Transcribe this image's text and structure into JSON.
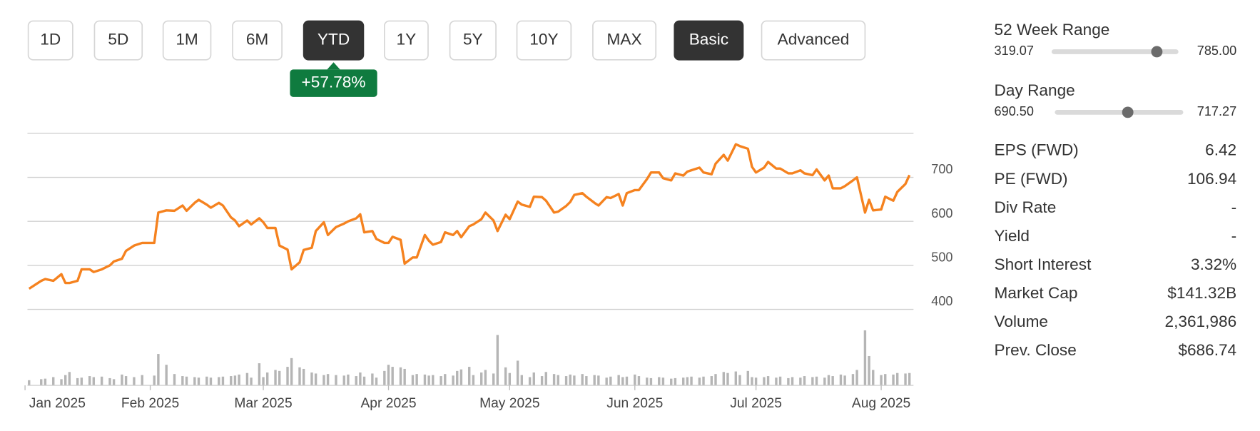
{
  "controls": {
    "buttons": [
      {
        "label": "1D",
        "active": false
      },
      {
        "label": "5D",
        "active": false
      },
      {
        "label": "1M",
        "active": false
      },
      {
        "label": "6M",
        "active": false
      },
      {
        "label": "YTD",
        "active": true
      },
      {
        "label": "1Y",
        "active": false
      },
      {
        "label": "5Y",
        "active": false
      },
      {
        "label": "10Y",
        "active": false
      },
      {
        "label": "MAX",
        "active": false
      },
      {
        "label": "Basic",
        "active": true
      },
      {
        "label": "Advanced",
        "active": false
      }
    ]
  },
  "change_badge": "+57.78%",
  "chart_data": {
    "type": "line",
    "color": "#f5821f",
    "volume_color": "#b5b5b5",
    "x": [
      2,
      5,
      6,
      8,
      10,
      11,
      12,
      14,
      15,
      17,
      18,
      20,
      22,
      23,
      25,
      26,
      28,
      30,
      33,
      34,
      36,
      38,
      40,
      41,
      43,
      44,
      46,
      47,
      49,
      50,
      52,
      53,
      54,
      56,
      57,
      59,
      60,
      61,
      63,
      64,
      66,
      67,
      69,
      70,
      72,
      73,
      75,
      76,
      78,
      80,
      81,
      83,
      84,
      85,
      87,
      88,
      90,
      91,
      92,
      94,
      95,
      97,
      98,
      100,
      101,
      102,
      104,
      105,
      107,
      108,
      109,
      111,
      112,
      114,
      115,
      117,
      118,
      120,
      121,
      123,
      124,
      126,
      127,
      129,
      130,
      132,
      133,
      135,
      136,
      137,
      139,
      140,
      142,
      143,
      145,
      146,
      148,
      149,
      150,
      152,
      153,
      155,
      156,
      158,
      159,
      161,
      162,
      164,
      165,
      166,
      168,
      169,
      171,
      172,
      174,
      175,
      177,
      178,
      180,
      181,
      182,
      184,
      185,
      187,
      188,
      190,
      191,
      193,
      194,
      196,
      197,
      199,
      200,
      201,
      203,
      204,
      206,
      207,
      209,
      210,
      211,
      213,
      214,
      216,
      217,
      219,
      220
    ],
    "values": [
      447,
      465,
      469,
      465,
      480,
      460,
      460,
      465,
      491,
      491,
      485,
      491,
      500,
      509,
      515,
      533,
      545,
      551,
      551,
      620,
      625,
      624,
      636,
      624,
      642,
      649,
      638,
      631,
      642,
      636,
      609,
      602,
      589,
      602,
      593,
      607,
      598,
      585,
      585,
      545,
      536,
      491,
      507,
      535,
      540,
      578,
      598,
      569,
      587,
      595,
      600,
      607,
      616,
      575,
      578,
      560,
      551,
      551,
      565,
      558,
      504,
      518,
      518,
      569,
      556,
      547,
      553,
      575,
      569,
      578,
      564,
      589,
      593,
      605,
      620,
      602,
      578,
      615,
      605,
      645,
      638,
      633,
      656,
      655,
      647,
      620,
      622,
      635,
      644,
      660,
      664,
      656,
      642,
      636,
      655,
      653,
      662,
      636,
      664,
      671,
      671,
      696,
      711,
      711,
      698,
      693,
      709,
      704,
      713,
      716,
      722,
      711,
      707,
      731,
      751,
      738,
      775,
      771,
      765,
      724,
      711,
      722,
      735,
      720,
      720,
      709,
      709,
      716,
      709,
      705,
      718,
      693,
      704,
      675,
      675,
      680,
      693,
      700,
      620,
      649,
      625,
      627,
      656,
      647,
      667,
      685,
      705
    ],
    "volume": [
      1.0,
      1.2,
      1.3,
      1.6,
      1.2,
      2.0,
      2.6,
      1.4,
      1.5,
      1.8,
      1.6,
      1.7,
      1.4,
      1.2,
      2.1,
      1.8,
      1.6,
      2.0,
      1.9,
      6.1,
      4.0,
      2.2,
      1.8,
      1.7,
      1.6,
      1.5,
      1.7,
      1.5,
      1.6,
      1.7,
      1.8,
      1.9,
      2.1,
      2.4,
      1.5,
      4.3,
      1.6,
      2.5,
      3.0,
      2.8,
      3.6,
      5.3,
      3.5,
      3.2,
      2.5,
      2.3,
      2.0,
      2.2,
      2.0,
      1.9,
      2.1,
      1.8,
      2.5,
      1.7,
      2.3,
      1.5,
      2.8,
      4.0,
      3.6,
      3.5,
      3.2,
      2.0,
      2.2,
      2.1,
      1.9,
      2.0,
      1.8,
      2.2,
      1.9,
      2.8,
      3.1,
      3.6,
      2.0,
      2.5,
      3.0,
      2.3,
      9.8,
      3.5,
      2.4,
      4.8,
      2.0,
      1.6,
      2.5,
      1.8,
      2.6,
      2.2,
      2.0,
      1.8,
      2.1,
      1.9,
      2.2,
      1.8,
      2.0,
      1.9,
      1.5,
      1.7,
      2.0,
      1.6,
      1.7,
      2.1,
      1.8,
      1.5,
      1.4,
      1.6,
      1.5,
      1.3,
      1.4,
      1.5,
      1.6,
      1.7,
      1.5,
      1.7,
      1.8,
      2.2,
      2.6,
      2.4,
      2.7,
      2.0,
      2.8,
      1.6,
      1.5,
      1.6,
      1.8,
      1.5,
      1.7,
      1.4,
      1.6,
      1.5,
      1.8,
      1.6,
      1.7,
      1.5,
      2.0,
      1.8,
      2.1,
      1.9,
      2.2,
      3.0,
      10.7,
      5.7,
      3.0,
      2.0,
      2.2,
      2.1,
      2.4,
      2.3,
      2.4
    ],
    "volume_ylim": [
      0,
      11
    ],
    "xlim": [
      1,
      221
    ],
    "xticks": [
      {
        "value": 1,
        "label": "Jan 2025"
      },
      {
        "value": 32,
        "label": "Feb 2025"
      },
      {
        "value": 60,
        "label": "Mar 2025"
      },
      {
        "value": 91,
        "label": "Apr 2025"
      },
      {
        "value": 121,
        "label": "May 2025"
      },
      {
        "value": 152,
        "label": "Jun 2025"
      },
      {
        "value": 182,
        "label": "Jul 2025"
      },
      {
        "value": 213,
        "label": "Aug 2025"
      }
    ],
    "ylim": [
      400,
      800
    ],
    "yticks": [
      400,
      500,
      600,
      700
    ],
    "grid": true
  },
  "ranges": [
    {
      "label": "52 Week Range",
      "min": {
        "value": 319.07,
        "label": "319.07"
      },
      "max": {
        "value": 785,
        "label": "785.00"
      },
      "marker": 705.7
    },
    {
      "label": "Day Range",
      "min": {
        "value": 690.5,
        "label": "690.50"
      },
      "max": {
        "value": 717.27,
        "label": "717.27"
      },
      "marker": 705.7
    }
  ],
  "stats": [
    {
      "label": "EPS (FWD)",
      "value": "6.42"
    },
    {
      "label": "PE (FWD)",
      "value": "106.94"
    },
    {
      "label": "Div Rate",
      "value": "-"
    },
    {
      "label": "Yield",
      "value": "-"
    },
    {
      "label": "Short Interest",
      "value": "3.32%"
    },
    {
      "label": "Market Cap",
      "value": "$141.32B"
    },
    {
      "label": "Volume",
      "value": "2,361,986"
    },
    {
      "label": "Prev. Close",
      "value": "$686.74"
    }
  ]
}
